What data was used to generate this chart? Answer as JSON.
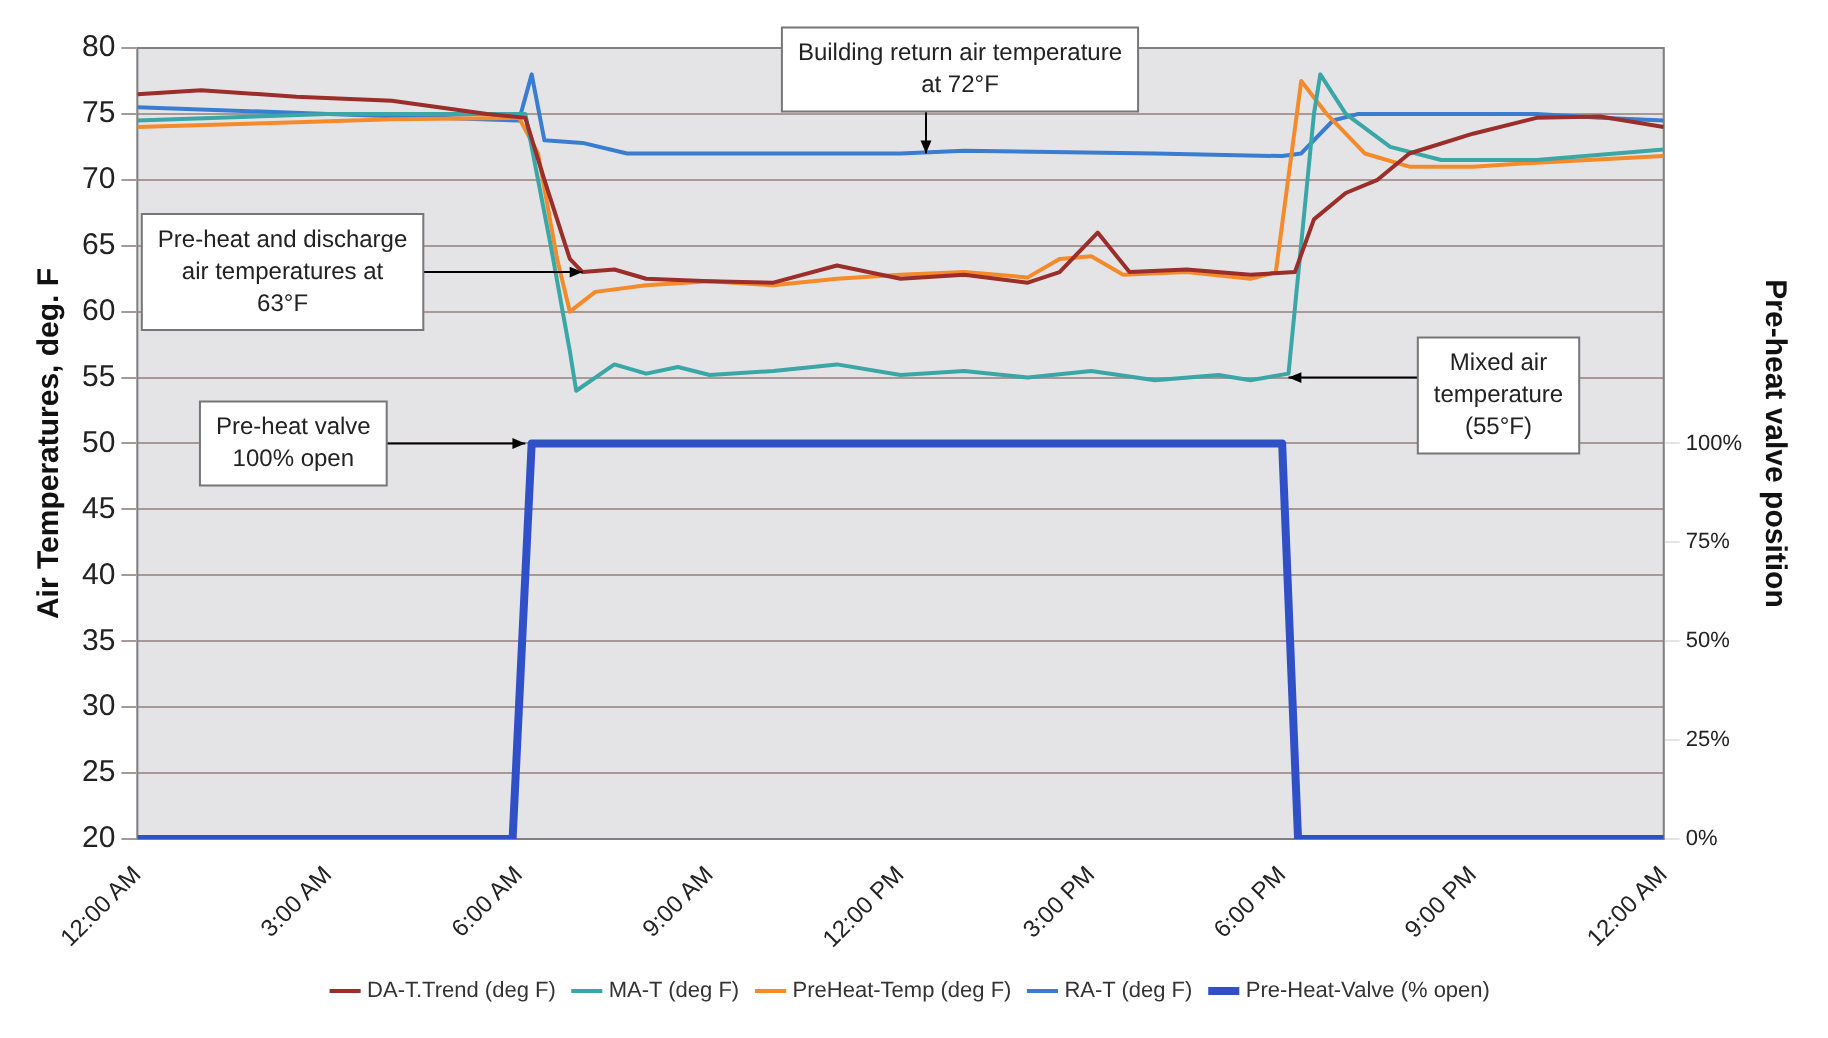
{
  "chart_data": {
    "type": "line",
    "ylabel": "Air Temperatures, deg. F",
    "y2label": "Pre-heat valve position",
    "xlim": [
      0,
      24
    ],
    "xticks": [
      {
        "value": 0,
        "label": "12:00 AM"
      },
      {
        "value": 3,
        "label": "3:00 AM"
      },
      {
        "value": 6,
        "label": "6:00 AM"
      },
      {
        "value": 9,
        "label": "9:00 AM"
      },
      {
        "value": 12,
        "label": "12:00 PM"
      },
      {
        "value": 15,
        "label": "3:00 PM"
      },
      {
        "value": 18,
        "label": "6:00 PM"
      },
      {
        "value": 21,
        "label": "9:00 PM"
      },
      {
        "value": 24,
        "label": "12:00 AM"
      }
    ],
    "ylim": [
      20,
      80
    ],
    "yticks": [
      20,
      25,
      30,
      35,
      40,
      45,
      50,
      55,
      60,
      65,
      70,
      75,
      80
    ],
    "y2lim": [
      0,
      200
    ],
    "y2ticks": [
      {
        "value": 0,
        "label": "0%"
      },
      {
        "value": 25,
        "label": "25%"
      },
      {
        "value": 50,
        "label": "50%"
      },
      {
        "value": 75,
        "label": "75%"
      },
      {
        "value": 100,
        "label": "100%"
      }
    ],
    "grid": "y",
    "legend": "bottom",
    "marker": "none",
    "line_style": "solid",
    "series": [
      {
        "name": "DA-T.Trend (deg F)",
        "color": "#9b2d2a",
        "x": [
          0,
          1,
          2.5,
          4,
          5.5,
          6.1,
          6.4,
          6.8,
          7,
          7.5,
          8,
          9,
          10,
          11,
          12,
          13,
          14,
          14.5,
          15.1,
          15.6,
          16.5,
          17.5,
          18.2,
          18.5,
          19,
          19.5,
          20,
          21,
          22,
          23,
          24
        ],
        "values": [
          76.5,
          76.8,
          76.3,
          76,
          75,
          74.7,
          70,
          64,
          63,
          63.2,
          62.5,
          62.3,
          62.2,
          63.5,
          62.5,
          62.8,
          62.2,
          63,
          66,
          63,
          63.2,
          62.8,
          63,
          67,
          69,
          70,
          72,
          73.5,
          74.7,
          74.8,
          74
        ]
      },
      {
        "name": "MA-T (deg F)",
        "color": "#3aa6a6",
        "x": [
          0,
          3,
          6.1,
          6.5,
          6.8,
          6.9,
          7.2,
          7.5,
          8,
          8.5,
          9,
          10,
          11,
          12,
          13,
          14,
          15,
          16,
          17,
          17.5,
          18.1,
          18.5,
          18.6,
          19,
          19.7,
          20.5,
          22,
          24
        ],
        "values": [
          74.5,
          75,
          75,
          65,
          57,
          54,
          55,
          56,
          55.3,
          55.8,
          55.2,
          55.5,
          56,
          55.2,
          55.5,
          55,
          55.5,
          54.8,
          55.2,
          54.8,
          55.3,
          75,
          78,
          75,
          72.5,
          71.5,
          71.5,
          72.3
        ]
      },
      {
        "name": "PreHeat-Temp (deg F)",
        "color": "#f58a2a",
        "x": [
          0,
          2,
          4,
          6,
          6.3,
          6.6,
          6.8,
          7.2,
          8,
          9,
          10,
          11,
          12,
          13,
          14,
          14.5,
          15,
          15.5,
          16.5,
          17.5,
          17.9,
          18.3,
          18.7,
          19.3,
          20,
          21,
          22,
          24
        ],
        "values": [
          74,
          74.3,
          74.6,
          74.7,
          72,
          64,
          60,
          61.5,
          62,
          62.3,
          62,
          62.5,
          62.8,
          63,
          62.6,
          64,
          64.2,
          62.8,
          63,
          62.5,
          63,
          77.5,
          75,
          72,
          71,
          71,
          71.3,
          71.8
        ]
      },
      {
        "name": "RA-T (deg F)",
        "color": "#3a7cd0",
        "x": [
          0,
          3,
          6,
          6.2,
          6.4,
          7,
          7.7,
          10,
          12,
          13,
          16,
          18,
          18.3,
          18.8,
          19.2,
          22,
          23,
          24
        ],
        "values": [
          75.5,
          75,
          74.5,
          78,
          73,
          72.8,
          72,
          72,
          72,
          72.2,
          72,
          71.8,
          72,
          74.5,
          75,
          75,
          74.7,
          74.5
        ]
      },
      {
        "name": "Pre-Heat-Valve (% open)",
        "color": "#3050c8",
        "axis": "y2",
        "x": [
          0,
          5.9,
          6.2,
          18.0,
          18.25,
          24
        ],
        "values": [
          0,
          0,
          100,
          100,
          0,
          0
        ]
      }
    ],
    "annotations": [
      {
        "text": "Building return air temperature at 72°F",
        "x": 12.4,
        "y": 72
      },
      {
        "text": "Pre-heat and discharge air temperatures at 63°F",
        "x": 7,
        "y": 63
      },
      {
        "text": "Mixed air temperature (55°F)",
        "x": 18.1,
        "y": 55
      },
      {
        "text": "Pre-heat valve 100% open",
        "x": 6.1,
        "y": 50
      }
    ]
  }
}
